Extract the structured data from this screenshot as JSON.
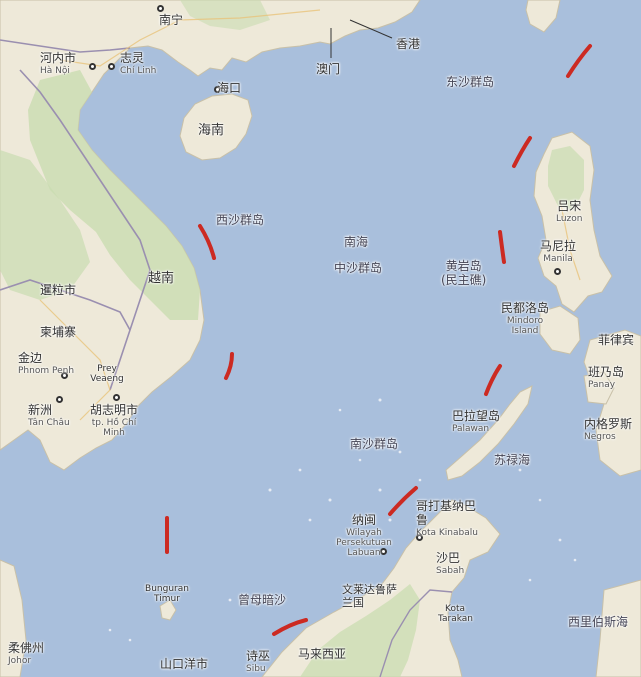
{
  "labels": {
    "nanning": "南宁",
    "hong_kong": "香港",
    "macau": "澳门",
    "haikou": "海口",
    "hainan": "海南",
    "hanoi": {
      "zh": "河内市",
      "en": "Hà Nội"
    },
    "chi_linh": {
      "zh": "志灵",
      "en": "Chí Linh"
    },
    "dongsha": "东沙群岛",
    "xisha": "西沙群岛",
    "south_china_sea": "南海",
    "zhongsha": "中沙群岛",
    "huangyan": {
      "zh": "黄岩岛",
      "note": "(民主礁)"
    },
    "luzon": {
      "zh": "吕宋",
      "en": "Luzon"
    },
    "manila": {
      "zh": "马尼拉",
      "en": "Manila"
    },
    "vietnam": "越南",
    "laos_city": "暹粒市",
    "cambodia": "柬埔寨",
    "phnom_penh": {
      "zh": "金边",
      "en": "Phnom Penh"
    },
    "prey_veaeng": "Prey Veaeng",
    "tan_chau": {
      "zh": "新洲",
      "en": "Tân Châu"
    },
    "ho_chi_minh": {
      "zh": "胡志明市",
      "en": "tp. Hồ Chí Minh"
    },
    "mindoro": {
      "zh": "民都洛岛",
      "en": "Mindoro Island"
    },
    "philippines": "菲律宾",
    "panay": {
      "zh": "班乃岛",
      "en": "Panay"
    },
    "negros": {
      "zh": "内格罗斯",
      "en": "Negros"
    },
    "palawan": {
      "zh": "巴拉望岛",
      "en": "Palawan"
    },
    "sulu_sea": "苏禄海",
    "nansha": "南沙群岛",
    "labuan": {
      "zh": "纳闽",
      "en": "Wilayah Persekutuan Labuan"
    },
    "kota_kinabalu": {
      "zh": "哥打基纳巴鲁",
      "en": "Kota Kinabalu"
    },
    "sabah": {
      "zh": "沙巴",
      "en": "Sabah"
    },
    "brunei": {
      "zh": "文莱达鲁萨兰国"
    },
    "kota_tarakan": "Kota Tarakan",
    "bunguran": "Bunguran Timur",
    "zengmu": "曾母暗沙",
    "malaysia": "马来西亚",
    "johor": {
      "zh": "柔佛州",
      "en": "Johor"
    },
    "sibu": {
      "zh": "诗巫",
      "en": "Sibu"
    },
    "shankou": "山口洋市",
    "celebes_sea": "西里伯斯海"
  },
  "colors": {
    "sea": "#a9bfdc",
    "land": "#eee9d9",
    "land_green": "#c9dcb0",
    "nine_dash": "#cc2a22",
    "border": "#9a8fb0"
  }
}
